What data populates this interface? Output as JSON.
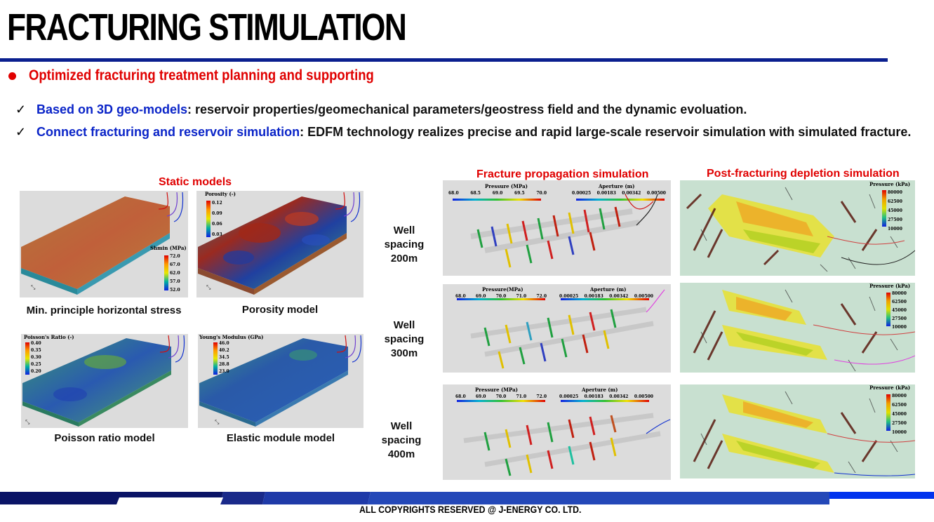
{
  "title": "FRACTURING STIMULATION",
  "main_bullet": "Optimized fracturing treatment planning and supporting",
  "points": [
    {
      "key": "Based on 3D geo-models",
      "rest": ": reservoir properties/geomechanical parameters/geostress field and the dynamic evoluation."
    },
    {
      "key": "Connect fracturing and reservoir simulation",
      "rest": ": EDFM technology realizes precise and rapid large-scale reservoir simulation with simulated fracture."
    }
  ],
  "sections": {
    "static": "Static models",
    "fracture": "Fracture propagation simulation",
    "depletion": "Post-fracturing depletion simulation"
  },
  "static_models": [
    {
      "caption": "Min. principle horizontal stress",
      "legend_title": "Shmin (MPa)",
      "ticks": [
        "72.0",
        "67.0",
        "62.0",
        "57.0",
        "52.0"
      ]
    },
    {
      "caption": "Porosity model",
      "legend_title": "Porosity (-)",
      "ticks": [
        "0.12",
        "0.09",
        "0.06",
        "0.03"
      ]
    },
    {
      "caption": "Poisson ratio model",
      "legend_title": "Poisson's Ratio (-)",
      "ticks": [
        "0.40",
        "0.35",
        "0.30",
        "0.25",
        "0.20"
      ]
    },
    {
      "caption": "Elastic module model",
      "legend_title": "Young's Modulus (GPa)",
      "ticks": [
        "46.0",
        "40.2",
        "34.5",
        "28.8",
        "23.0"
      ]
    }
  ],
  "well_spacings": [
    {
      "line1": "Well spacing",
      "line2": "200m"
    },
    {
      "line1": "Well spacing",
      "line2": "300m"
    },
    {
      "line1": "Well spacing",
      "line2": "400m"
    }
  ],
  "fracture_panels": [
    {
      "pressure_title": "Pressure (MPa)",
      "pressure_ticks": [
        "68.0",
        "68.5",
        "69.0",
        "69.5",
        "70.0"
      ],
      "aperture_title": "Aperture (m)",
      "aperture_ticks": [
        "0.00025",
        "0.00183",
        "0.00342",
        "0.00500"
      ]
    },
    {
      "pressure_title": "Pressure(MPa)",
      "pressure_ticks": [
        "68.0",
        "69.0",
        "70.0",
        "71.0",
        "72.0"
      ],
      "aperture_title": "Aperture (m)",
      "aperture_ticks": [
        "0.00025",
        "0.00183",
        "0.00342",
        "0.00500"
      ]
    },
    {
      "pressure_title": "Pressure (MPa)",
      "pressure_ticks": [
        "68.0",
        "69.0",
        "70.0",
        "71.0",
        "72.0"
      ],
      "aperture_title": "Aperture (m)",
      "aperture_ticks": [
        "0.00025",
        "0.00183",
        "0.00342",
        "0.00500"
      ]
    }
  ],
  "depletion_panels": [
    {
      "legend_title": "Pressure (kPa)",
      "ticks": [
        "80000",
        "62500",
        "45000",
        "27500",
        "10000"
      ]
    },
    {
      "legend_title": "Pressure (kPa)",
      "ticks": [
        "80000",
        "62500",
        "45000",
        "27500",
        "10000"
      ]
    },
    {
      "legend_title": "Pressure (kPa)",
      "ticks": [
        "80000",
        "62500",
        "45000",
        "27500",
        "10000"
      ]
    }
  ],
  "footer": "ALL COPYRIGHTS RESERVED @ J-ENERGY CO. LTD.",
  "colors": {
    "accent_red": "#e00000",
    "accent_blue": "#0a24c8",
    "rule_navy": "#0a1f8f"
  }
}
